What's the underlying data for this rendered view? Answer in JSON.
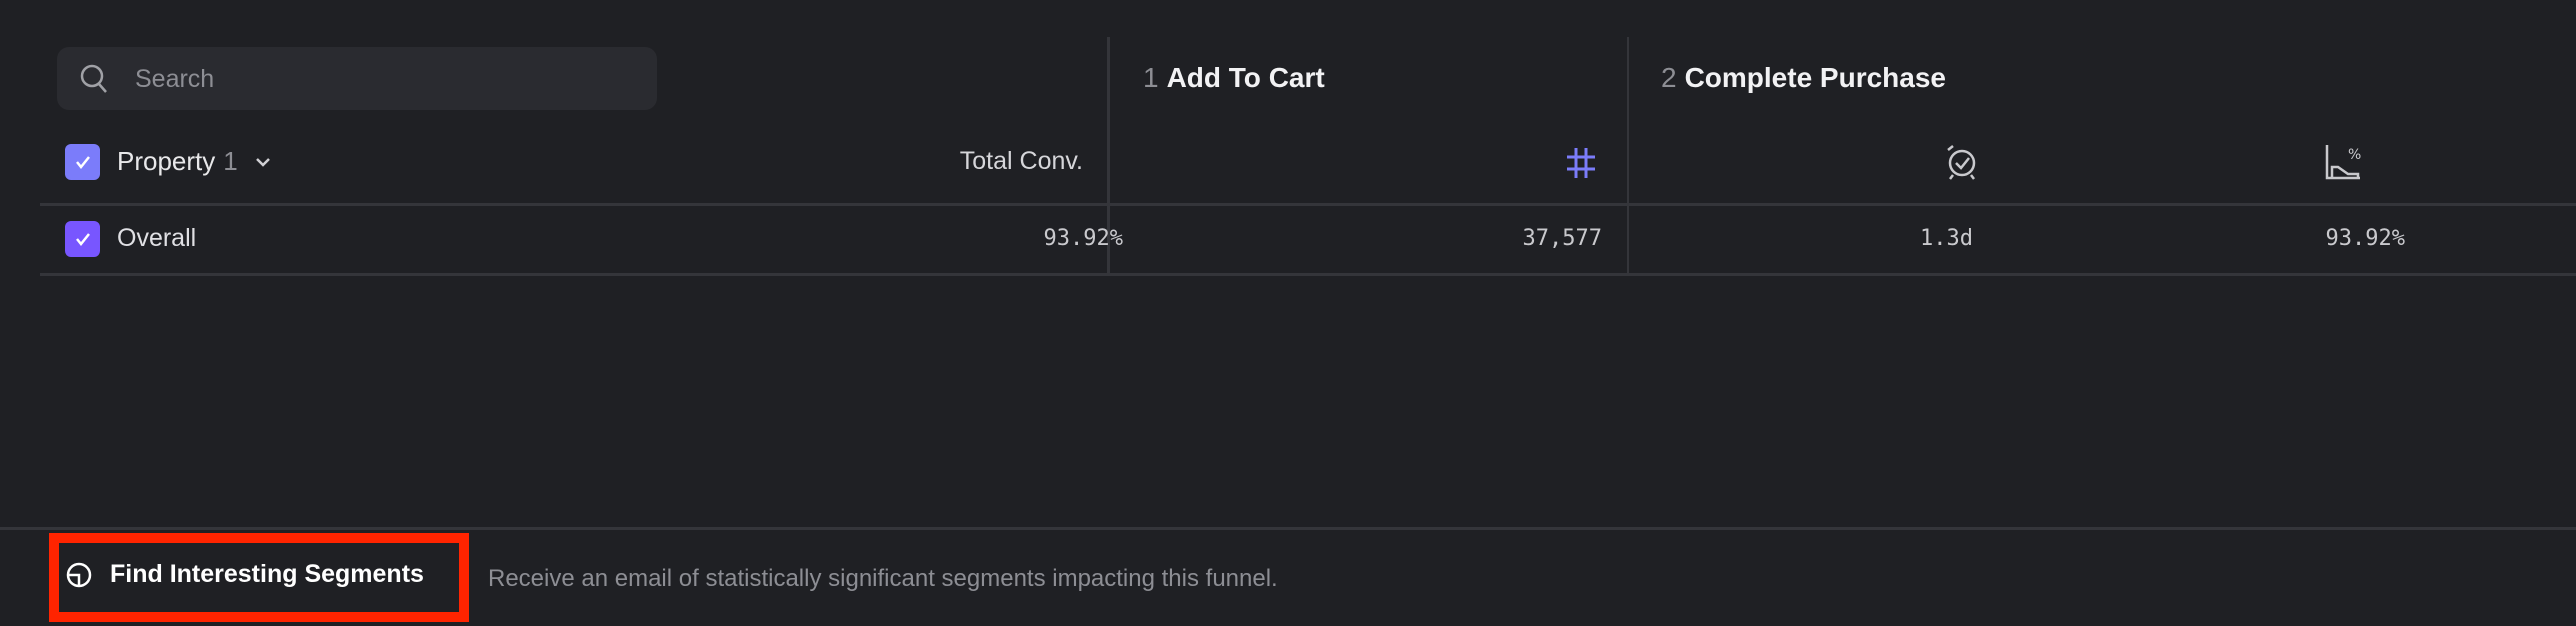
{
  "search": {
    "placeholder": "Search",
    "icon": "search-icon"
  },
  "table": {
    "property_header": {
      "label": "Property",
      "count": "1",
      "checked": true
    },
    "total_conv_header": "Total Conv.",
    "steps": [
      {
        "number": "1",
        "name": "Add To Cart",
        "metrics": [
          {
            "icon": "hash-icon",
            "color": "#7b7cfa"
          }
        ]
      },
      {
        "number": "2",
        "name": "Complete Purchase",
        "metrics": [
          {
            "icon": "clock-check-icon"
          },
          {
            "icon": "conversion-chart-icon"
          }
        ]
      }
    ],
    "rows": [
      {
        "label": "Overall",
        "checked": true,
        "total_conv": "93.92%",
        "step1_count": "37,577",
        "step2_time": "1.3d",
        "step2_conv": "93.92%"
      }
    ]
  },
  "footer": {
    "button_label": "Find Interesting Segments",
    "description": "Receive an email of statistically significant segments impacting this funnel."
  },
  "colors": {
    "background": "#1f2024",
    "header_checkbox": "#7b7cfa",
    "row_checkbox": "#7856ff",
    "highlight": "#ff2400"
  }
}
